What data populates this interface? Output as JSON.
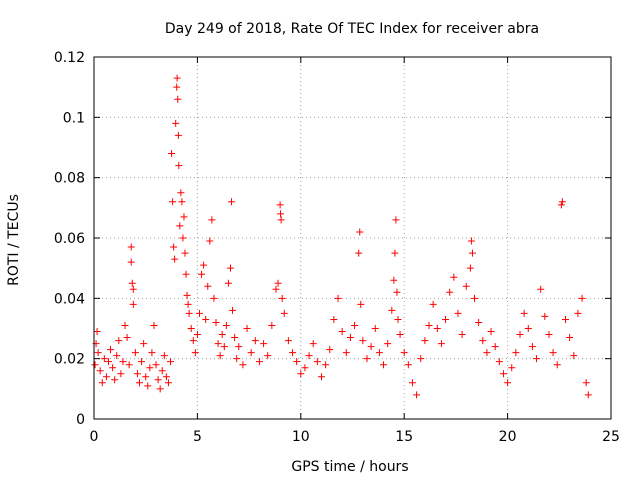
{
  "chart_data": {
    "type": "scatter",
    "title": "Day 249 of 2018, Rate Of TEC Index for receiver abra",
    "xlabel": "GPS time / hours",
    "ylabel": "ROTI / TECUs",
    "xlim": [
      0,
      25
    ],
    "ylim": [
      0,
      0.12
    ],
    "xticks": [
      0,
      5,
      10,
      15,
      20,
      25
    ],
    "yticks": [
      0,
      0.02,
      0.04,
      0.06,
      0.08,
      0.1,
      0.12
    ],
    "xtick_labels": [
      "0",
      "5",
      "10",
      "15",
      "20",
      "25"
    ],
    "ytick_labels": [
      "0",
      "0.02",
      "0.04",
      "0.06",
      "0.08",
      "0.1",
      "0.12"
    ],
    "grid": true,
    "marker": "plus",
    "color": "#ff0000",
    "series": [
      {
        "name": "",
        "points": [
          [
            0.05,
            0.018
          ],
          [
            0.1,
            0.025
          ],
          [
            0.15,
            0.029
          ],
          [
            0.2,
            0.022
          ],
          [
            0.3,
            0.016
          ],
          [
            0.4,
            0.012
          ],
          [
            0.5,
            0.02
          ],
          [
            0.6,
            0.014
          ],
          [
            0.7,
            0.019
          ],
          [
            0.8,
            0.023
          ],
          [
            0.9,
            0.017
          ],
          [
            1.0,
            0.013
          ],
          [
            1.1,
            0.021
          ],
          [
            1.2,
            0.026
          ],
          [
            1.3,
            0.015
          ],
          [
            1.4,
            0.019
          ],
          [
            1.5,
            0.031
          ],
          [
            1.6,
            0.027
          ],
          [
            1.7,
            0.018
          ],
          [
            1.8,
            0.057
          ],
          [
            1.8,
            0.052
          ],
          [
            1.85,
            0.045
          ],
          [
            1.9,
            0.038
          ],
          [
            1.9,
            0.043
          ],
          [
            2.0,
            0.022
          ],
          [
            2.1,
            0.015
          ],
          [
            2.2,
            0.012
          ],
          [
            2.3,
            0.019
          ],
          [
            2.4,
            0.025
          ],
          [
            2.5,
            0.014
          ],
          [
            2.6,
            0.011
          ],
          [
            2.7,
            0.017
          ],
          [
            2.8,
            0.022
          ],
          [
            2.9,
            0.031
          ],
          [
            3.0,
            0.018
          ],
          [
            3.1,
            0.013
          ],
          [
            3.2,
            0.01
          ],
          [
            3.3,
            0.016
          ],
          [
            3.4,
            0.021
          ],
          [
            3.5,
            0.014
          ],
          [
            3.6,
            0.012
          ],
          [
            3.7,
            0.019
          ],
          [
            3.75,
            0.088
          ],
          [
            3.8,
            0.072
          ],
          [
            3.85,
            0.057
          ],
          [
            3.9,
            0.053
          ],
          [
            3.95,
            0.098
          ],
          [
            4.0,
            0.11
          ],
          [
            4.02,
            0.113
          ],
          [
            4.05,
            0.106
          ],
          [
            4.08,
            0.094
          ],
          [
            4.1,
            0.084
          ],
          [
            4.15,
            0.064
          ],
          [
            4.2,
            0.075
          ],
          [
            4.25,
            0.072
          ],
          [
            4.3,
            0.06
          ],
          [
            4.35,
            0.067
          ],
          [
            4.4,
            0.055
          ],
          [
            4.45,
            0.048
          ],
          [
            4.5,
            0.041
          ],
          [
            4.55,
            0.038
          ],
          [
            4.6,
            0.035
          ],
          [
            4.7,
            0.03
          ],
          [
            4.8,
            0.026
          ],
          [
            4.9,
            0.022
          ],
          [
            5.0,
            0.028
          ],
          [
            5.1,
            0.035
          ],
          [
            5.2,
            0.048
          ],
          [
            5.3,
            0.051
          ],
          [
            5.4,
            0.033
          ],
          [
            5.5,
            0.044
          ],
          [
            5.6,
            0.059
          ],
          [
            5.7,
            0.066
          ],
          [
            5.8,
            0.04
          ],
          [
            5.9,
            0.032
          ],
          [
            6.0,
            0.025
          ],
          [
            6.1,
            0.021
          ],
          [
            6.2,
            0.028
          ],
          [
            6.3,
            0.024
          ],
          [
            6.4,
            0.031
          ],
          [
            6.5,
            0.045
          ],
          [
            6.6,
            0.05
          ],
          [
            6.65,
            0.072
          ],
          [
            6.7,
            0.036
          ],
          [
            6.8,
            0.027
          ],
          [
            6.9,
            0.02
          ],
          [
            7.0,
            0.024
          ],
          [
            7.2,
            0.018
          ],
          [
            7.4,
            0.03
          ],
          [
            7.6,
            0.022
          ],
          [
            7.8,
            0.026
          ],
          [
            8.0,
            0.019
          ],
          [
            8.2,
            0.025
          ],
          [
            8.4,
            0.021
          ],
          [
            8.6,
            0.031
          ],
          [
            8.8,
            0.043
          ],
          [
            8.9,
            0.045
          ],
          [
            9.0,
            0.071
          ],
          [
            9.02,
            0.068
          ],
          [
            9.05,
            0.066
          ],
          [
            9.1,
            0.04
          ],
          [
            9.2,
            0.035
          ],
          [
            9.4,
            0.026
          ],
          [
            9.6,
            0.022
          ],
          [
            9.8,
            0.019
          ],
          [
            10.0,
            0.015
          ],
          [
            10.2,
            0.017
          ],
          [
            10.4,
            0.021
          ],
          [
            10.6,
            0.025
          ],
          [
            10.8,
            0.019
          ],
          [
            11.0,
            0.014
          ],
          [
            11.2,
            0.018
          ],
          [
            11.4,
            0.023
          ],
          [
            11.6,
            0.033
          ],
          [
            11.8,
            0.04
          ],
          [
            12.0,
            0.029
          ],
          [
            12.2,
            0.022
          ],
          [
            12.4,
            0.027
          ],
          [
            12.6,
            0.031
          ],
          [
            12.8,
            0.055
          ],
          [
            12.85,
            0.062
          ],
          [
            12.9,
            0.038
          ],
          [
            13.0,
            0.026
          ],
          [
            13.2,
            0.02
          ],
          [
            13.4,
            0.024
          ],
          [
            13.6,
            0.03
          ],
          [
            13.8,
            0.022
          ],
          [
            14.0,
            0.018
          ],
          [
            14.2,
            0.025
          ],
          [
            14.4,
            0.036
          ],
          [
            14.5,
            0.046
          ],
          [
            14.55,
            0.055
          ],
          [
            14.6,
            0.066
          ],
          [
            14.65,
            0.042
          ],
          [
            14.7,
            0.033
          ],
          [
            14.8,
            0.028
          ],
          [
            15.0,
            0.022
          ],
          [
            15.2,
            0.018
          ],
          [
            15.4,
            0.012
          ],
          [
            15.6,
            0.008
          ],
          [
            15.8,
            0.02
          ],
          [
            16.0,
            0.026
          ],
          [
            16.2,
            0.031
          ],
          [
            16.4,
            0.038
          ],
          [
            16.6,
            0.03
          ],
          [
            16.8,
            0.025
          ],
          [
            17.0,
            0.033
          ],
          [
            17.2,
            0.042
          ],
          [
            17.4,
            0.047
          ],
          [
            17.6,
            0.035
          ],
          [
            17.8,
            0.028
          ],
          [
            18.0,
            0.044
          ],
          [
            18.2,
            0.05
          ],
          [
            18.25,
            0.059
          ],
          [
            18.3,
            0.055
          ],
          [
            18.4,
            0.04
          ],
          [
            18.6,
            0.032
          ],
          [
            18.8,
            0.026
          ],
          [
            19.0,
            0.022
          ],
          [
            19.2,
            0.029
          ],
          [
            19.4,
            0.024
          ],
          [
            19.6,
            0.019
          ],
          [
            19.8,
            0.015
          ],
          [
            20.0,
            0.012
          ],
          [
            20.2,
            0.017
          ],
          [
            20.4,
            0.022
          ],
          [
            20.6,
            0.028
          ],
          [
            20.8,
            0.035
          ],
          [
            21.0,
            0.03
          ],
          [
            21.2,
            0.024
          ],
          [
            21.4,
            0.02
          ],
          [
            21.6,
            0.043
          ],
          [
            21.8,
            0.034
          ],
          [
            22.0,
            0.028
          ],
          [
            22.2,
            0.022
          ],
          [
            22.4,
            0.018
          ],
          [
            22.6,
            0.071
          ],
          [
            22.65,
            0.072
          ],
          [
            22.8,
            0.033
          ],
          [
            23.0,
            0.027
          ],
          [
            23.2,
            0.021
          ],
          [
            23.4,
            0.035
          ],
          [
            23.6,
            0.04
          ],
          [
            23.8,
            0.012
          ],
          [
            23.9,
            0.008
          ]
        ]
      }
    ]
  }
}
